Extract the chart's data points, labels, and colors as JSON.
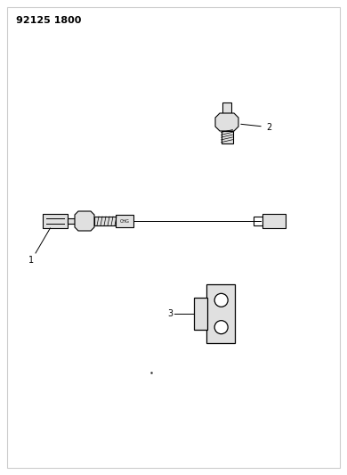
{
  "title": "92125 1800",
  "background_color": "#ffffff",
  "border_color": "#cccccc",
  "line_color": "#000000",
  "fig_width": 3.9,
  "fig_height": 5.33,
  "dpi": 100,
  "title_fontsize": 8,
  "label_fontsize": 7,
  "part1_label": "1",
  "part2_label": "2",
  "part3_label": "3"
}
